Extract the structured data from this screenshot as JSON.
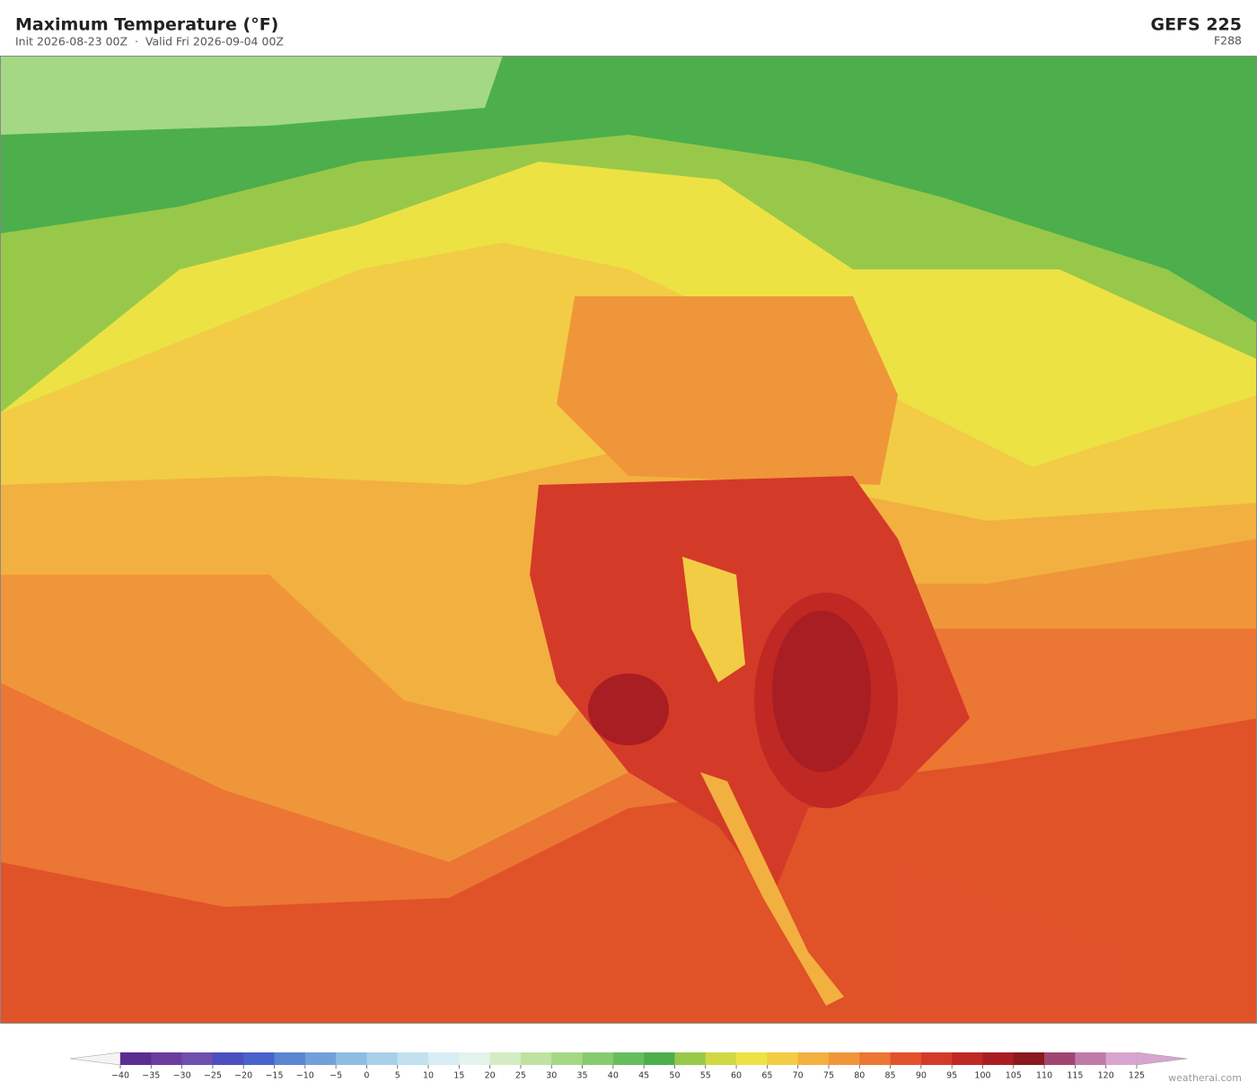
{
  "header": {
    "title": "Maximum Temperature  (°F)",
    "subtitle": "Init 2026-08-23 00Z  ·  Valid Fri 2026-09-04 00Z",
    "model": "GEFS  225",
    "forecast_hour": "F288"
  },
  "colorbar": {
    "ticks": [
      {
        "value": -40,
        "label": "−40"
      },
      {
        "value": -35,
        "label": "−35"
      },
      {
        "value": -30,
        "label": "−30"
      },
      {
        "value": -25,
        "label": "−25"
      },
      {
        "value": -20,
        "label": "−20"
      },
      {
        "value": -15,
        "label": "−15"
      },
      {
        "value": -10,
        "label": "−10"
      },
      {
        "value": -5,
        "label": "−5"
      },
      0,
      5,
      10,
      15,
      20,
      25,
      30,
      35,
      40,
      45,
      50,
      55,
      60,
      65,
      70,
      75,
      80,
      85,
      90,
      95,
      100,
      105,
      110,
      115,
      120,
      125
    ],
    "colors": [
      "#5a2d91",
      "#6a3d9e",
      "#6e4fae",
      "#4c4fbf",
      "#4a62cc",
      "#5a85d0",
      "#72a0d8",
      "#8fbce2",
      "#a8d0ea",
      "#c2e0f0",
      "#d8ecf4",
      "#e4f4ec",
      "#d4ecc4",
      "#bfe2a0",
      "#a4d884",
      "#86cc6e",
      "#66be5e",
      "#4caf4c",
      "#98c84a",
      "#d0d844",
      "#ece244",
      "#f2cc44",
      "#f2b040",
      "#f0963a",
      "#ec7634",
      "#e2532c",
      "#d43a28",
      "#c02824",
      "#a81e22",
      "#8c1820",
      "#a04670",
      "#c07aa8",
      "#d8a4d0"
    ],
    "under_color": "#f4f4f4",
    "over_color": "#d8a4d0"
  },
  "footer": {
    "watermark": "weatherai.com"
  }
}
